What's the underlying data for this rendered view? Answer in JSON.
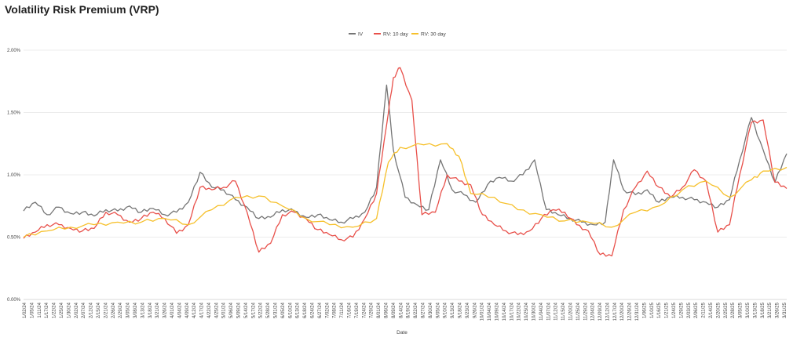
{
  "chart_data": {
    "type": "line",
    "title": "Volatility Risk Premium (VRP)",
    "xlabel": "Date",
    "ylabel": "",
    "ylim": [
      0,
      0.02
    ],
    "yticks": [
      "0.00%",
      "0.50%",
      "1.00%",
      "1.50%",
      "2.00%"
    ],
    "legend_position": "top-center",
    "grid": true,
    "x_range": [
      "2024-01-02",
      "2025-03-31"
    ],
    "x_tick_labels": [
      "1/02/24",
      "1/05/24",
      "1/11/24",
      "1/17/24",
      "1/22/24",
      "1/25/24",
      "1/30/24",
      "2/02/24",
      "2/07/24",
      "2/12/24",
      "2/15/24",
      "2/21/24",
      "2/26/24",
      "2/29/24",
      "3/05/24",
      "3/08/24",
      "3/13/24",
      "3/18/24",
      "3/21/24",
      "3/26/24",
      "4/01/24",
      "4/04/24",
      "4/09/24",
      "4/12/24",
      "4/17/24",
      "4/22/24",
      "4/25/24",
      "5/01/24",
      "5/06/24",
      "5/09/24",
      "5/14/24",
      "5/17/24",
      "5/22/24",
      "5/28/24",
      "5/31/24",
      "6/05/24",
      "6/10/24",
      "6/13/24",
      "6/18/24",
      "6/24/24",
      "6/27/24",
      "7/02/24",
      "7/08/24",
      "7/11/24",
      "7/16/24",
      "7/19/24",
      "7/24/24",
      "7/29/24",
      "8/01/24",
      "8/06/24",
      "8/09/24",
      "8/14/24",
      "8/19/24",
      "8/22/24",
      "8/27/24",
      "8/30/24",
      "9/05/24",
      "9/10/24",
      "9/13/24",
      "9/18/24",
      "9/23/24",
      "9/26/24",
      "10/01/24",
      "10/04/24",
      "10/09/24",
      "10/14/24",
      "10/17/24",
      "10/22/24",
      "10/25/24",
      "10/30/24",
      "11/04/24",
      "11/07/24",
      "11/12/24",
      "11/15/24",
      "11/20/24",
      "11/25/24",
      "11/29/24",
      "12/04/24",
      "12/09/24",
      "12/12/24",
      "12/17/24",
      "12/20/24",
      "12/26/24",
      "12/31/24",
      "1/06/25",
      "1/10/25",
      "1/16/25",
      "1/21/25",
      "1/24/25",
      "1/29/25",
      "2/03/25",
      "2/06/25",
      "2/11/25",
      "2/14/25",
      "2/20/25",
      "2/25/25",
      "2/28/25",
      "3/05/25",
      "3/10/25",
      "3/13/25",
      "3/18/25",
      "3/21/25",
      "3/26/25",
      "3/31/25"
    ],
    "colors": {
      "IV": "#757575",
      "RV: 10 day": "#e8504a",
      "RV: 30 day": "#f6c02b"
    },
    "series": [
      {
        "name": "IV",
        "color": "#757575",
        "points": [
          [
            "2024-01-02",
            0.0071
          ],
          [
            "2024-01-09",
            0.0078
          ],
          [
            "2024-01-16",
            0.0068
          ],
          [
            "2024-01-23",
            0.0074
          ],
          [
            "2024-01-30",
            0.0069
          ],
          [
            "2024-02-06",
            0.007
          ],
          [
            "2024-02-13",
            0.0067
          ],
          [
            "2024-02-20",
            0.0072
          ],
          [
            "2024-02-27",
            0.0071
          ],
          [
            "2024-03-05",
            0.0075
          ],
          [
            "2024-03-12",
            0.007
          ],
          [
            "2024-03-19",
            0.0073
          ],
          [
            "2024-03-26",
            0.0068
          ],
          [
            "2024-04-02",
            0.007
          ],
          [
            "2024-04-09",
            0.0078
          ],
          [
            "2024-04-16",
            0.0102
          ],
          [
            "2024-04-23",
            0.009
          ],
          [
            "2024-04-30",
            0.0088
          ],
          [
            "2024-05-07",
            0.008
          ],
          [
            "2024-05-14",
            0.0074
          ],
          [
            "2024-05-21",
            0.0065
          ],
          [
            "2024-05-28",
            0.0066
          ],
          [
            "2024-06-04",
            0.0072
          ],
          [
            "2024-06-11",
            0.0071
          ],
          [
            "2024-06-18",
            0.0066
          ],
          [
            "2024-06-25",
            0.0068
          ],
          [
            "2024-07-02",
            0.0064
          ],
          [
            "2024-07-09",
            0.0062
          ],
          [
            "2024-07-16",
            0.0065
          ],
          [
            "2024-07-23",
            0.007
          ],
          [
            "2024-07-30",
            0.009
          ],
          [
            "2024-08-05",
            0.0172
          ],
          [
            "2024-08-09",
            0.012
          ],
          [
            "2024-08-16",
            0.0082
          ],
          [
            "2024-08-23",
            0.0076
          ],
          [
            "2024-08-30",
            0.0072
          ],
          [
            "2024-09-06",
            0.0112
          ],
          [
            "2024-09-13",
            0.0088
          ],
          [
            "2024-09-20",
            0.0084
          ],
          [
            "2024-09-27",
            0.0078
          ],
          [
            "2024-10-04",
            0.0092
          ],
          [
            "2024-10-11",
            0.0098
          ],
          [
            "2024-10-18",
            0.0095
          ],
          [
            "2024-10-25",
            0.01
          ],
          [
            "2024-11-01",
            0.0112
          ],
          [
            "2024-11-08",
            0.0072
          ],
          [
            "2024-11-15",
            0.0068
          ],
          [
            "2024-11-22",
            0.0065
          ],
          [
            "2024-11-29",
            0.0062
          ],
          [
            "2024-12-06",
            0.006
          ],
          [
            "2024-12-13",
            0.0062
          ],
          [
            "2024-12-18",
            0.0112
          ],
          [
            "2024-12-24",
            0.0088
          ],
          [
            "2024-12-31",
            0.0084
          ],
          [
            "2025-01-07",
            0.0088
          ],
          [
            "2025-01-14",
            0.0078
          ],
          [
            "2025-01-21",
            0.0082
          ],
          [
            "2025-01-28",
            0.0082
          ],
          [
            "2025-02-04",
            0.008
          ],
          [
            "2025-02-11",
            0.0078
          ],
          [
            "2025-02-18",
            0.0074
          ],
          [
            "2025-02-25",
            0.008
          ],
          [
            "2025-03-03",
            0.0112
          ],
          [
            "2025-03-10",
            0.0146
          ],
          [
            "2025-03-17",
            0.012
          ],
          [
            "2025-03-24",
            0.0094
          ],
          [
            "2025-03-31",
            0.0117
          ]
        ]
      },
      {
        "name": "RV: 10 day",
        "color": "#e8504a",
        "points": [
          [
            "2024-01-02",
            0.0049
          ],
          [
            "2024-01-09",
            0.0054
          ],
          [
            "2024-01-16",
            0.006
          ],
          [
            "2024-01-23",
            0.006
          ],
          [
            "2024-01-30",
            0.0057
          ],
          [
            "2024-02-06",
            0.0055
          ],
          [
            "2024-02-13",
            0.0057
          ],
          [
            "2024-02-20",
            0.007
          ],
          [
            "2024-02-27",
            0.0068
          ],
          [
            "2024-03-05",
            0.0062
          ],
          [
            "2024-03-12",
            0.0065
          ],
          [
            "2024-03-19",
            0.007
          ],
          [
            "2024-03-26",
            0.0065
          ],
          [
            "2024-04-02",
            0.0053
          ],
          [
            "2024-04-09",
            0.006
          ],
          [
            "2024-04-16",
            0.009
          ],
          [
            "2024-04-23",
            0.0088
          ],
          [
            "2024-04-30",
            0.009
          ],
          [
            "2024-05-07",
            0.0095
          ],
          [
            "2024-05-14",
            0.007
          ],
          [
            "2024-05-21",
            0.0038
          ],
          [
            "2024-05-28",
            0.0045
          ],
          [
            "2024-06-04",
            0.0068
          ],
          [
            "2024-06-11",
            0.007
          ],
          [
            "2024-06-18",
            0.0065
          ],
          [
            "2024-06-25",
            0.0056
          ],
          [
            "2024-07-02",
            0.0052
          ],
          [
            "2024-07-09",
            0.0048
          ],
          [
            "2024-07-16",
            0.005
          ],
          [
            "2024-07-23",
            0.0065
          ],
          [
            "2024-07-30",
            0.0085
          ],
          [
            "2024-08-05",
            0.014
          ],
          [
            "2024-08-09",
            0.0178
          ],
          [
            "2024-08-13",
            0.0186
          ],
          [
            "2024-08-20",
            0.016
          ],
          [
            "2024-08-26",
            0.0068
          ],
          [
            "2024-09-03",
            0.007
          ],
          [
            "2024-09-10",
            0.01
          ],
          [
            "2024-09-17",
            0.0095
          ],
          [
            "2024-09-24",
            0.0092
          ],
          [
            "2024-10-01",
            0.0068
          ],
          [
            "2024-10-08",
            0.006
          ],
          [
            "2024-10-15",
            0.0055
          ],
          [
            "2024-10-22",
            0.0052
          ],
          [
            "2024-10-29",
            0.0055
          ],
          [
            "2024-11-05",
            0.0065
          ],
          [
            "2024-11-12",
            0.0072
          ],
          [
            "2024-11-19",
            0.007
          ],
          [
            "2024-11-26",
            0.006
          ],
          [
            "2024-12-03",
            0.0055
          ],
          [
            "2024-12-10",
            0.0036
          ],
          [
            "2024-12-17",
            0.0035
          ],
          [
            "2024-12-24",
            0.0072
          ],
          [
            "2024-12-31",
            0.009
          ],
          [
            "2025-01-07",
            0.0103
          ],
          [
            "2025-01-14",
            0.009
          ],
          [
            "2025-01-21",
            0.0082
          ],
          [
            "2025-01-28",
            0.009
          ],
          [
            "2025-02-04",
            0.0104
          ],
          [
            "2025-02-11",
            0.0095
          ],
          [
            "2025-02-18",
            0.0054
          ],
          [
            "2025-02-25",
            0.006
          ],
          [
            "2025-03-03",
            0.01
          ],
          [
            "2025-03-10",
            0.0142
          ],
          [
            "2025-03-17",
            0.0144
          ],
          [
            "2025-03-24",
            0.0094
          ],
          [
            "2025-03-31",
            0.0089
          ]
        ]
      },
      {
        "name": "RV: 30 day",
        "color": "#f6c02b",
        "points": [
          [
            "2024-01-02",
            0.005
          ],
          [
            "2024-01-16",
            0.0055
          ],
          [
            "2024-01-30",
            0.0058
          ],
          [
            "2024-02-13",
            0.006
          ],
          [
            "2024-02-27",
            0.0062
          ],
          [
            "2024-03-12",
            0.0062
          ],
          [
            "2024-03-26",
            0.0065
          ],
          [
            "2024-04-09",
            0.006
          ],
          [
            "2024-04-23",
            0.0072
          ],
          [
            "2024-05-07",
            0.0082
          ],
          [
            "2024-05-21",
            0.0083
          ],
          [
            "2024-06-04",
            0.0075
          ],
          [
            "2024-06-18",
            0.0065
          ],
          [
            "2024-07-02",
            0.006
          ],
          [
            "2024-07-16",
            0.0058
          ],
          [
            "2024-07-30",
            0.0065
          ],
          [
            "2024-08-06",
            0.011
          ],
          [
            "2024-08-13",
            0.0122
          ],
          [
            "2024-08-27",
            0.0124
          ],
          [
            "2024-09-10",
            0.0125
          ],
          [
            "2024-09-17",
            0.0115
          ],
          [
            "2024-09-24",
            0.0085
          ],
          [
            "2024-10-08",
            0.0082
          ],
          [
            "2024-10-22",
            0.0072
          ],
          [
            "2024-11-05",
            0.0068
          ],
          [
            "2024-11-19",
            0.0063
          ],
          [
            "2024-12-03",
            0.0062
          ],
          [
            "2024-12-17",
            0.0058
          ],
          [
            "2024-12-31",
            0.007
          ],
          [
            "2025-01-14",
            0.0075
          ],
          [
            "2025-01-28",
            0.0088
          ],
          [
            "2025-02-11",
            0.0095
          ],
          [
            "2025-02-25",
            0.0082
          ],
          [
            "2025-03-10",
            0.0096
          ],
          [
            "2025-03-17",
            0.0103
          ],
          [
            "2025-03-31",
            0.0106
          ]
        ]
      }
    ]
  }
}
